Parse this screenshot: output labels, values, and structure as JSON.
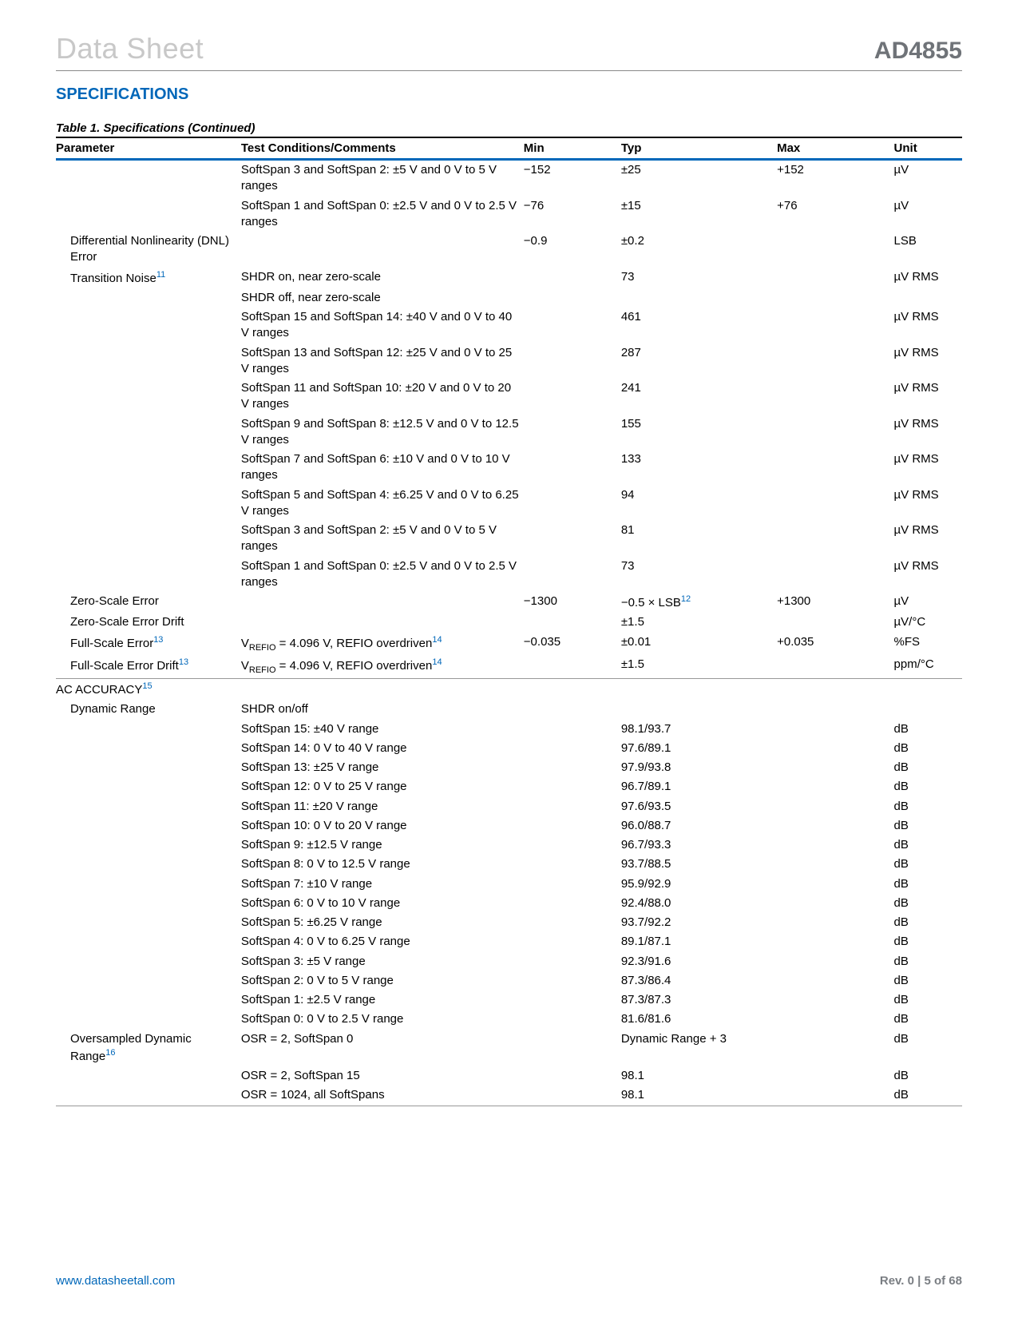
{
  "header": {
    "left": "Data Sheet",
    "right": "AD4855"
  },
  "section_title": "SPECIFICATIONS",
  "table_caption": "Table 1. Specifications (Continued)",
  "columns": [
    "Parameter",
    "Test Conditions/Comments",
    "Min",
    "Typ",
    "Max",
    "Unit"
  ],
  "rows": [
    {
      "p": "",
      "c": "SoftSpan 3 and SoftSpan 2: ±5 V and 0 V to 5 V ranges",
      "min": "−152",
      "typ": "±25",
      "max": "+152",
      "u": "µV"
    },
    {
      "p": "",
      "c": "SoftSpan 1 and SoftSpan 0: ±2.5 V and 0 V to 2.5 V ranges",
      "min": "−76",
      "typ": "±15",
      "max": "+76",
      "u": "µV"
    },
    {
      "p": "Differential Nonlinearity (DNL) Error",
      "ind": 1,
      "c": "",
      "min": "−0.9",
      "typ": "±0.2",
      "max": "",
      "u": "LSB"
    },
    {
      "p": "Transition Noise",
      "sup": "11",
      "ind": 1,
      "c": "SHDR on, near zero-scale",
      "min": "",
      "typ": "73",
      "max": "",
      "u": "µV RMS"
    },
    {
      "p": "",
      "c": "SHDR off, near zero-scale",
      "min": "",
      "typ": "",
      "max": "",
      "u": ""
    },
    {
      "p": "",
      "c": "SoftSpan 15 and SoftSpan 14: ±40 V and 0 V to 40 V ranges",
      "min": "",
      "typ": "461",
      "max": "",
      "u": "µV RMS"
    },
    {
      "p": "",
      "c": "SoftSpan 13 and SoftSpan 12: ±25 V and 0 V to 25 V ranges",
      "min": "",
      "typ": "287",
      "max": "",
      "u": "µV RMS"
    },
    {
      "p": "",
      "c": "SoftSpan 11 and SoftSpan 10: ±20 V and 0 V to 20 V ranges",
      "min": "",
      "typ": "241",
      "max": "",
      "u": "µV RMS"
    },
    {
      "p": "",
      "c": "SoftSpan 9 and SoftSpan 8: ±12.5 V and 0 V to 12.5 V ranges",
      "min": "",
      "typ": "155",
      "max": "",
      "u": "µV RMS"
    },
    {
      "p": "",
      "c": "SoftSpan 7 and SoftSpan 6: ±10 V and 0 V to 10 V ranges",
      "min": "",
      "typ": "133",
      "max": "",
      "u": "µV RMS"
    },
    {
      "p": "",
      "c": "SoftSpan 5 and SoftSpan 4: ±6.25 V and 0 V to 6.25 V ranges",
      "min": "",
      "typ": "94",
      "max": "",
      "u": "µV RMS"
    },
    {
      "p": "",
      "c": "SoftSpan 3 and SoftSpan 2: ±5 V and 0 V to 5 V ranges",
      "min": "",
      "typ": "81",
      "max": "",
      "u": "µV RMS"
    },
    {
      "p": "",
      "c": "SoftSpan 1 and SoftSpan 0: ±2.5 V and 0 V to 2.5 V ranges",
      "min": "",
      "typ": "73",
      "max": "",
      "u": "µV RMS"
    },
    {
      "p": "Zero-Scale Error",
      "ind": 1,
      "c": "",
      "min": "−1300",
      "typ": "−0.5 × LSB",
      "typ_sup": "12",
      "max": "+1300",
      "u": "µV"
    },
    {
      "p": "Zero-Scale Error Drift",
      "ind": 1,
      "c": "",
      "min": "",
      "typ": "±1.5",
      "max": "",
      "u": "µV/°C"
    },
    {
      "p": "Full-Scale Error",
      "sup": "13",
      "ind": 1,
      "c": "V|REFIO| = 4.096 V, REFIO overdriven",
      "c_sup": "14",
      "min": "−0.035",
      "typ": "±0.01",
      "max": "+0.035",
      "u": "%FS"
    },
    {
      "p": "Full-Scale Error Drift",
      "sup": "13",
      "ind": 1,
      "c": "V|REFIO| = 4.096 V, REFIO overdriven",
      "c_sup": "14",
      "min": "",
      "typ": "±1.5",
      "max": "",
      "u": "ppm/°C"
    },
    {
      "sep": true,
      "p": "AC ACCURACY",
      "sup": "15",
      "c": "",
      "min": "",
      "typ": "",
      "max": "",
      "u": ""
    },
    {
      "p": "Dynamic Range",
      "ind": 1,
      "c": "SHDR on/off",
      "min": "",
      "typ": "",
      "max": "",
      "u": ""
    },
    {
      "p": "",
      "c": "SoftSpan 15: ±40 V range",
      "min": "",
      "typ": "98.1/93.7",
      "max": "",
      "u": "dB"
    },
    {
      "p": "",
      "c": "SoftSpan 14: 0 V to 40 V range",
      "min": "",
      "typ": "97.6/89.1",
      "max": "",
      "u": "dB"
    },
    {
      "p": "",
      "c": "SoftSpan 13: ±25 V range",
      "min": "",
      "typ": "97.9/93.8",
      "max": "",
      "u": "dB"
    },
    {
      "p": "",
      "c": "SoftSpan 12: 0 V to 25 V range",
      "min": "",
      "typ": "96.7/89.1",
      "max": "",
      "u": "dB"
    },
    {
      "p": "",
      "c": "SoftSpan 11: ±20 V range",
      "min": "",
      "typ": "97.6/93.5",
      "max": "",
      "u": "dB"
    },
    {
      "p": "",
      "c": "SoftSpan 10: 0 V to 20 V range",
      "min": "",
      "typ": "96.0/88.7",
      "max": "",
      "u": "dB"
    },
    {
      "p": "",
      "c": "SoftSpan 9: ±12.5 V range",
      "min": "",
      "typ": "96.7/93.3",
      "max": "",
      "u": "dB"
    },
    {
      "p": "",
      "c": "SoftSpan 8: 0 V to 12.5 V range",
      "min": "",
      "typ": "93.7/88.5",
      "max": "",
      "u": "dB"
    },
    {
      "p": "",
      "c": "SoftSpan 7: ±10 V range",
      "min": "",
      "typ": "95.9/92.9",
      "max": "",
      "u": "dB"
    },
    {
      "p": "",
      "c": "SoftSpan 6: 0 V to 10 V range",
      "min": "",
      "typ": "92.4/88.0",
      "max": "",
      "u": "dB"
    },
    {
      "p": "",
      "c": "SoftSpan 5: ±6.25 V range",
      "min": "",
      "typ": "93.7/92.2",
      "max": "",
      "u": "dB"
    },
    {
      "p": "",
      "c": "SoftSpan 4: 0 V to 6.25 V range",
      "min": "",
      "typ": "89.1/87.1",
      "max": "",
      "u": "dB"
    },
    {
      "p": "",
      "c": "SoftSpan 3: ±5 V range",
      "min": "",
      "typ": "92.3/91.6",
      "max": "",
      "u": "dB"
    },
    {
      "p": "",
      "c": "SoftSpan 2: 0 V to 5 V range",
      "min": "",
      "typ": "87.3/86.4",
      "max": "",
      "u": "dB"
    },
    {
      "p": "",
      "c": "SoftSpan 1: ±2.5 V range",
      "min": "",
      "typ": "87.3/87.3",
      "max": "",
      "u": "dB"
    },
    {
      "p": "",
      "c": "SoftSpan 0: 0 V to 2.5 V range",
      "min": "",
      "typ": "81.6/81.6",
      "max": "",
      "u": "dB"
    },
    {
      "p": "Oversampled Dynamic Range",
      "sup": "16",
      "ind": 1,
      "c": "OSR = 2, SoftSpan 0",
      "min": "",
      "typ": "Dynamic Range + 3",
      "max": "",
      "u": "dB"
    },
    {
      "p": "",
      "c": "OSR = 2, SoftSpan 15",
      "min": "",
      "typ": "98.1",
      "max": "",
      "u": "dB"
    },
    {
      "p": "",
      "c": "OSR = 1024, all SoftSpans",
      "min": "",
      "typ": "98.1",
      "max": "",
      "u": "dB",
      "last": true
    }
  ],
  "footer": {
    "left": "www.datasheetall.com",
    "right": "Rev. 0 | 5 of 68"
  }
}
